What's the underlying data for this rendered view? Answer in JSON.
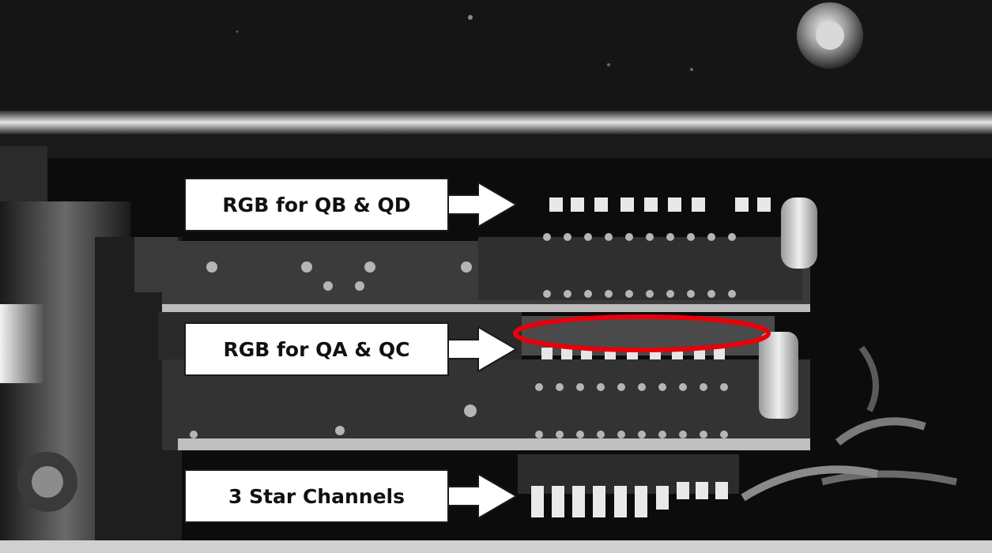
{
  "annotations": {
    "label_1": "RGB for QB & QD",
    "label_2": "RGB for QA & QC",
    "label_3": "3 Star Channels"
  },
  "colors": {
    "highlight_ellipse": "#e8000b",
    "label_background": "#ffffff",
    "label_text": "#111111",
    "photo_background": "#0c0c0c"
  }
}
